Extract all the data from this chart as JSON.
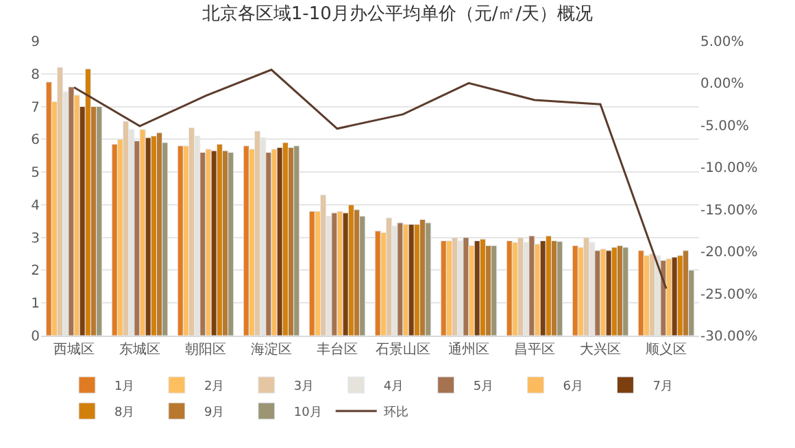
{
  "chart_data": {
    "type": "bar",
    "title": "北京各区域1-10月办公平均单价（元/㎡/天）概况",
    "categories": [
      "西城区",
      "东城区",
      "朝阳区",
      "海淀区",
      "丰台区",
      "石景山区",
      "通州区",
      "昌平区",
      "大兴区",
      "顺义区"
    ],
    "series": [
      {
        "name": "1月",
        "color": "#e07b24",
        "values": [
          7.75,
          5.85,
          5.8,
          5.8,
          3.8,
          3.2,
          2.9,
          2.9,
          2.75,
          2.6
        ]
      },
      {
        "name": "2月",
        "color": "#fdbf5f",
        "values": [
          7.15,
          6.0,
          5.8,
          5.7,
          3.8,
          3.15,
          2.9,
          2.85,
          2.7,
          2.45
        ]
      },
      {
        "name": "3月",
        "color": "#e4c6a2",
        "values": [
          8.2,
          6.55,
          6.35,
          6.25,
          4.3,
          3.6,
          3.0,
          3.0,
          3.0,
          2.5
        ]
      },
      {
        "name": "4月",
        "color": "#e6e3dc",
        "values": [
          7.45,
          6.3,
          6.1,
          6.05,
          3.65,
          3.35,
          2.9,
          2.85,
          2.85,
          2.45
        ]
      },
      {
        "name": "5月",
        "color": "#a57350",
        "values": [
          7.6,
          5.95,
          5.6,
          5.6,
          3.75,
          3.45,
          3.0,
          3.05,
          2.6,
          2.3
        ]
      },
      {
        "name": "6月",
        "color": "#fbbb5e",
        "values": [
          7.35,
          6.3,
          5.7,
          5.7,
          3.8,
          3.4,
          2.75,
          2.8,
          2.65,
          2.35
        ]
      },
      {
        "name": "7月",
        "color": "#7b3f10",
        "values": [
          7.0,
          6.05,
          5.65,
          5.75,
          3.75,
          3.4,
          2.9,
          2.9,
          2.6,
          2.4
        ]
      },
      {
        "name": "8月",
        "color": "#d2800c",
        "values": [
          8.15,
          6.1,
          5.85,
          5.9,
          4.0,
          3.4,
          2.95,
          3.05,
          2.7,
          2.45
        ]
      },
      {
        "name": "9月",
        "color": "#b8792f",
        "values": [
          7.0,
          6.2,
          5.65,
          5.75,
          3.85,
          3.55,
          2.75,
          2.9,
          2.75,
          2.6
        ]
      },
      {
        "name": "10月",
        "color": "#9b9574",
        "values": [
          7.0,
          5.9,
          5.6,
          5.8,
          3.65,
          3.45,
          2.75,
          2.88,
          2.7,
          2.0
        ]
      },
      {
        "name": "环比",
        "type": "line",
        "axis": "y2",
        "color": "#5c3c2c",
        "values": [
          -0.5,
          -5.1,
          -1.5,
          1.6,
          -5.4,
          -3.7,
          0.0,
          -2.0,
          -2.5,
          -24.4
        ]
      }
    ],
    "ylim": [
      0,
      9
    ],
    "yticks": [
      0,
      1,
      2,
      3,
      4,
      5,
      6,
      7,
      8,
      9
    ],
    "y2lim": [
      -30,
      5
    ],
    "y2ticks": [
      {
        "value": -30,
        "label": "-30.00%"
      },
      {
        "value": -25,
        "label": "-25.00%"
      },
      {
        "value": -20,
        "label": "-20.00%"
      },
      {
        "value": -15,
        "label": "-15.00%"
      },
      {
        "value": -10,
        "label": "-10.00%"
      },
      {
        "value": -5,
        "label": "-5.00%"
      },
      {
        "value": 0,
        "label": "0.00%"
      },
      {
        "value": 5,
        "label": "5.00%"
      }
    ],
    "grid": "y",
    "legend": "bottom"
  }
}
